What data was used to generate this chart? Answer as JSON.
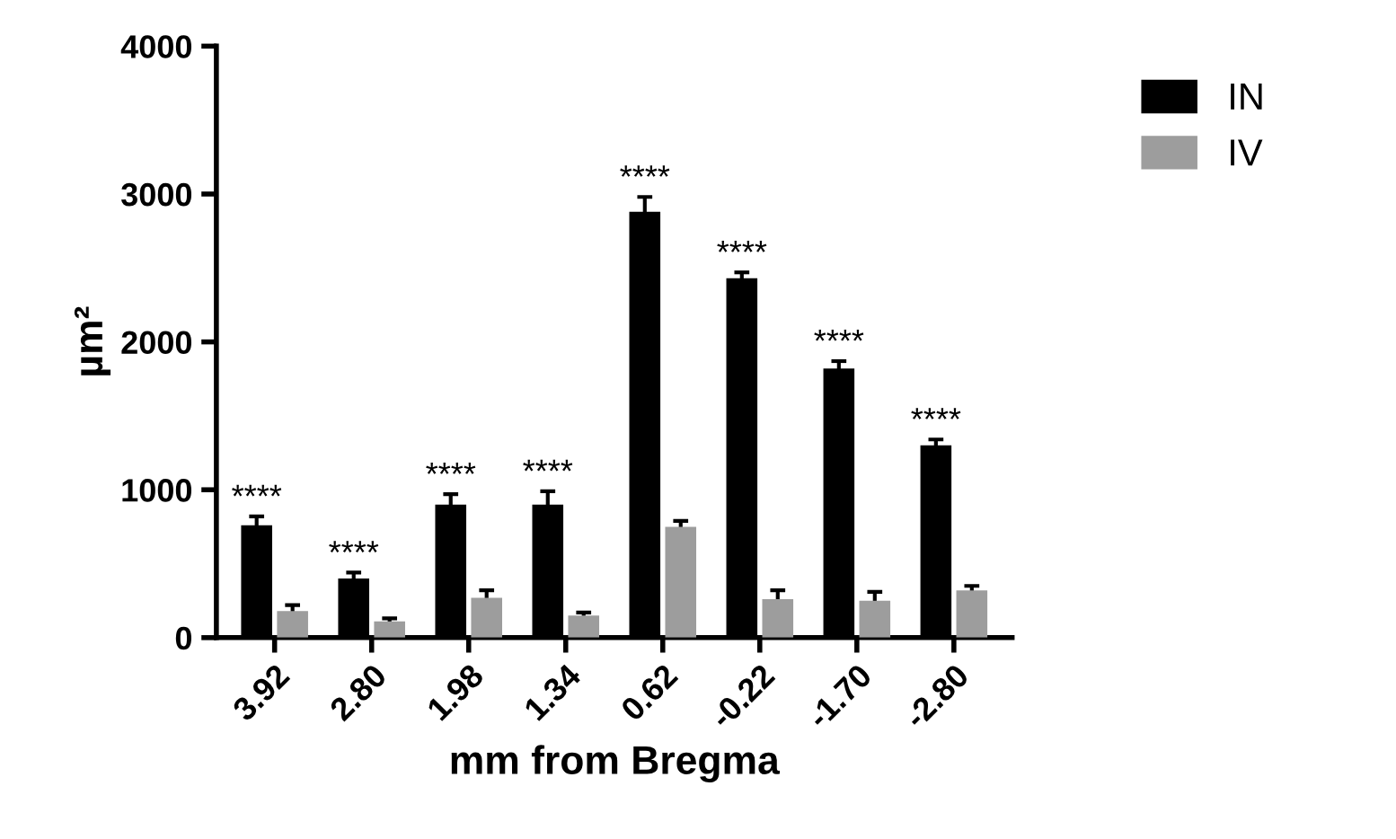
{
  "chart_data": {
    "type": "bar",
    "xlabel": "mm from Bregma",
    "ylabel": "µm²",
    "categories": [
      "3.92",
      "2.80",
      "1.98",
      "1.34",
      "0.62",
      "-0.22",
      "-1.70",
      "-2.80"
    ],
    "series": [
      {
        "name": "IN",
        "color": "#000000",
        "values": [
          760,
          400,
          900,
          900,
          2880,
          2430,
          1820,
          1300
        ],
        "errors": [
          60,
          40,
          70,
          90,
          100,
          40,
          50,
          40
        ]
      },
      {
        "name": "IV",
        "color": "#9d9d9d",
        "values": [
          180,
          110,
          270,
          150,
          750,
          260,
          250,
          320
        ],
        "errors": [
          40,
          20,
          50,
          20,
          40,
          60,
          60,
          30
        ]
      }
    ],
    "ylim": [
      0,
      4000
    ],
    "yticks": [
      0,
      1000,
      2000,
      3000,
      4000
    ],
    "grid": false,
    "legend": "top right",
    "annotations": [
      {
        "text": "****",
        "x": "3.92",
        "y": 760
      },
      {
        "text": "****",
        "x": "2.80",
        "y": 400
      },
      {
        "text": "****",
        "x": "1.98",
        "y": 900
      },
      {
        "text": "****",
        "x": "1.34",
        "y": 900
      },
      {
        "text": "****",
        "x": "0.62",
        "y": 2880
      },
      {
        "text": "****",
        "x": "-0.22",
        "y": 2430
      },
      {
        "text": "****",
        "x": "-1.70",
        "y": 1820
      },
      {
        "text": "****",
        "x": "-2.80",
        "y": 1300
      }
    ]
  }
}
